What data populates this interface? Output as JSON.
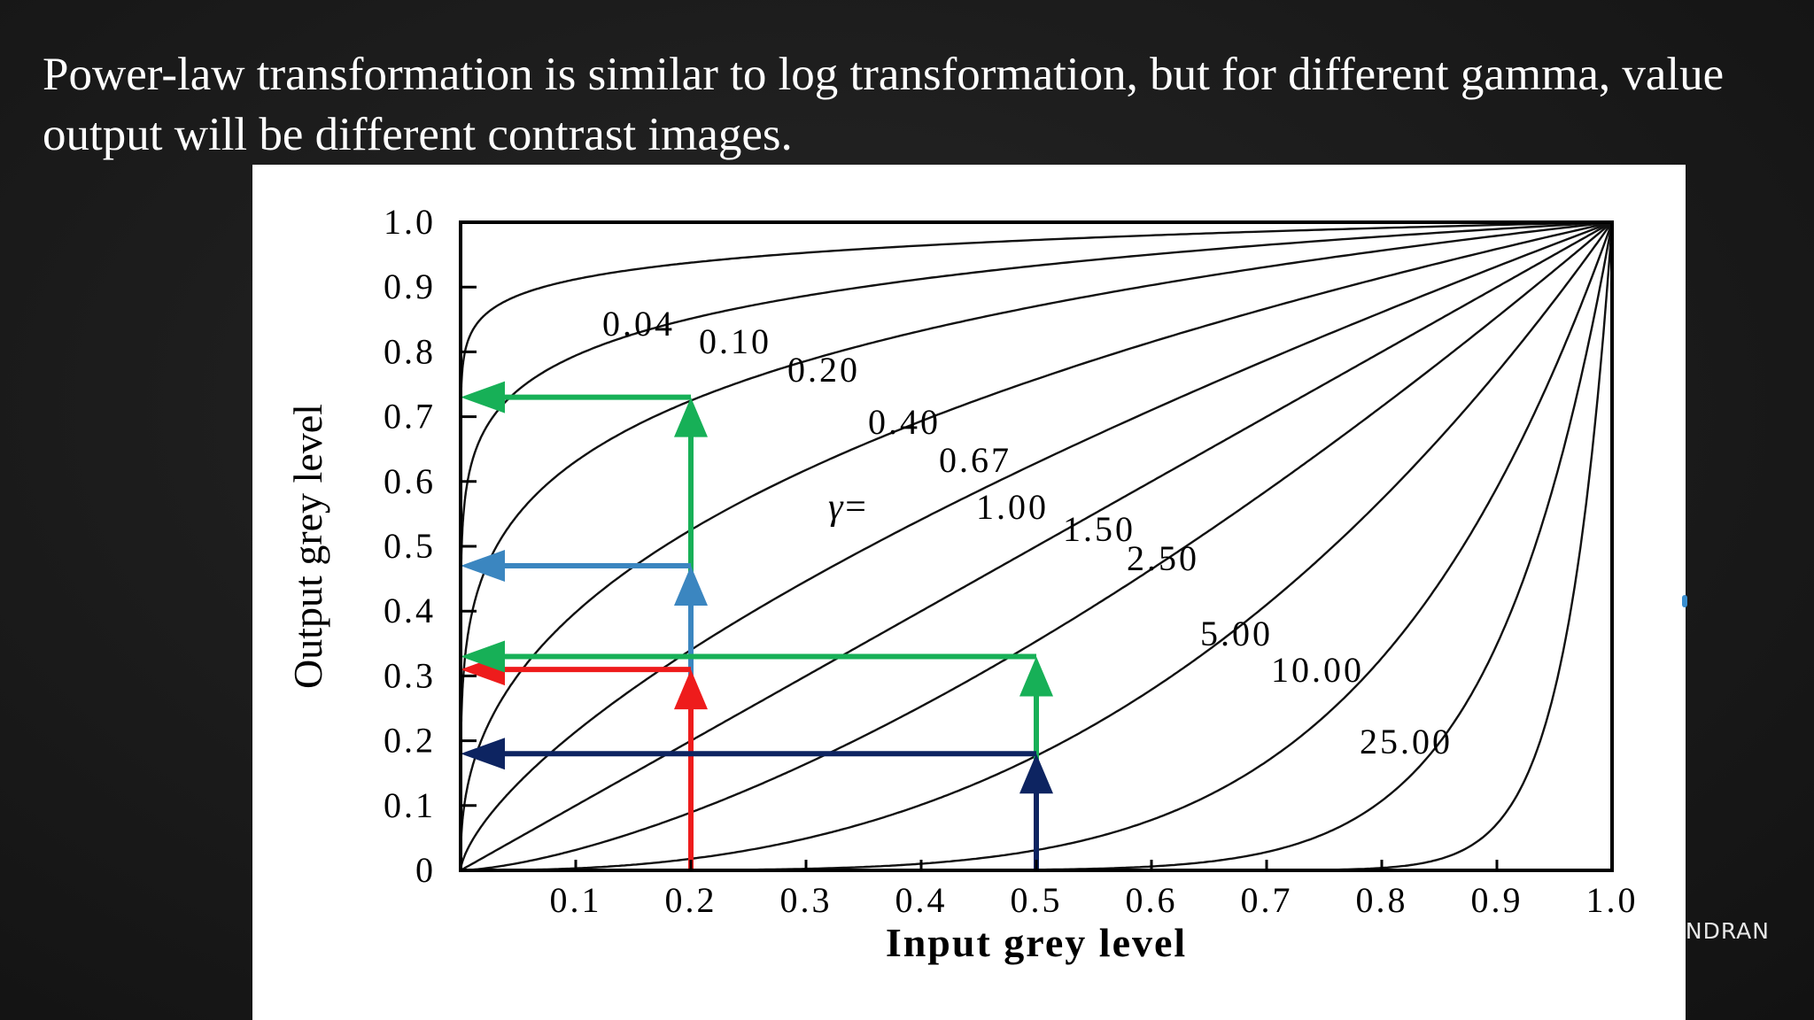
{
  "slide": {
    "heading": "Power-law transformation is similar to log transformation, but for different gamma, value output will be different contrast images.",
    "footer_fragment": "NDRAN"
  },
  "chart_data": {
    "type": "line",
    "title": "",
    "xlabel": "Input grey level",
    "ylabel": "Output grey level",
    "xlim": [
      0,
      1
    ],
    "ylim": [
      0,
      1
    ],
    "xticks": [
      "0.1",
      "0.2",
      "0.3",
      "0.4",
      "0.5",
      "0.6",
      "0.7",
      "0.8",
      "0.9",
      "1.0"
    ],
    "yticks": [
      "0",
      "0.1",
      "0.2",
      "0.3",
      "0.4",
      "0.5",
      "0.6",
      "0.7",
      "0.8",
      "0.9",
      "1.0"
    ],
    "formula_label": "γ=",
    "series": [
      {
        "gamma": 0.04,
        "label": "0.04"
      },
      {
        "gamma": 0.1,
        "label": "0.10"
      },
      {
        "gamma": 0.2,
        "label": "0.20"
      },
      {
        "gamma": 0.4,
        "label": "0.40"
      },
      {
        "gamma": 0.67,
        "label": "0.67"
      },
      {
        "gamma": 1.0,
        "label": "1.00"
      },
      {
        "gamma": 1.5,
        "label": "1.50"
      },
      {
        "gamma": 2.5,
        "label": "2.50"
      },
      {
        "gamma": 5.0,
        "label": "5.00"
      },
      {
        "gamma": 10.0,
        "label": "10.00"
      },
      {
        "gamma": 25.0,
        "label": "25.00"
      }
    ],
    "annotations": [
      {
        "name": "green-arrow-input-0.2-output-0.73",
        "color": "#17b057",
        "x": 0.2,
        "y": 0.73
      },
      {
        "name": "blue-arrow-input-0.2-output-0.47",
        "color": "#3b86c0",
        "x": 0.2,
        "y": 0.47
      },
      {
        "name": "red-arrow-input-0.2-output-0.31",
        "color": "#ee1c1c",
        "x": 0.2,
        "y": 0.31
      },
      {
        "name": "green-arrow-input-0.5-output-0.33",
        "color": "#17b057",
        "x": 0.5,
        "y": 0.33
      },
      {
        "name": "navy-arrow-input-0.5-output-0.18",
        "color": "#0d2461",
        "x": 0.5,
        "y": 0.18
      }
    ]
  }
}
